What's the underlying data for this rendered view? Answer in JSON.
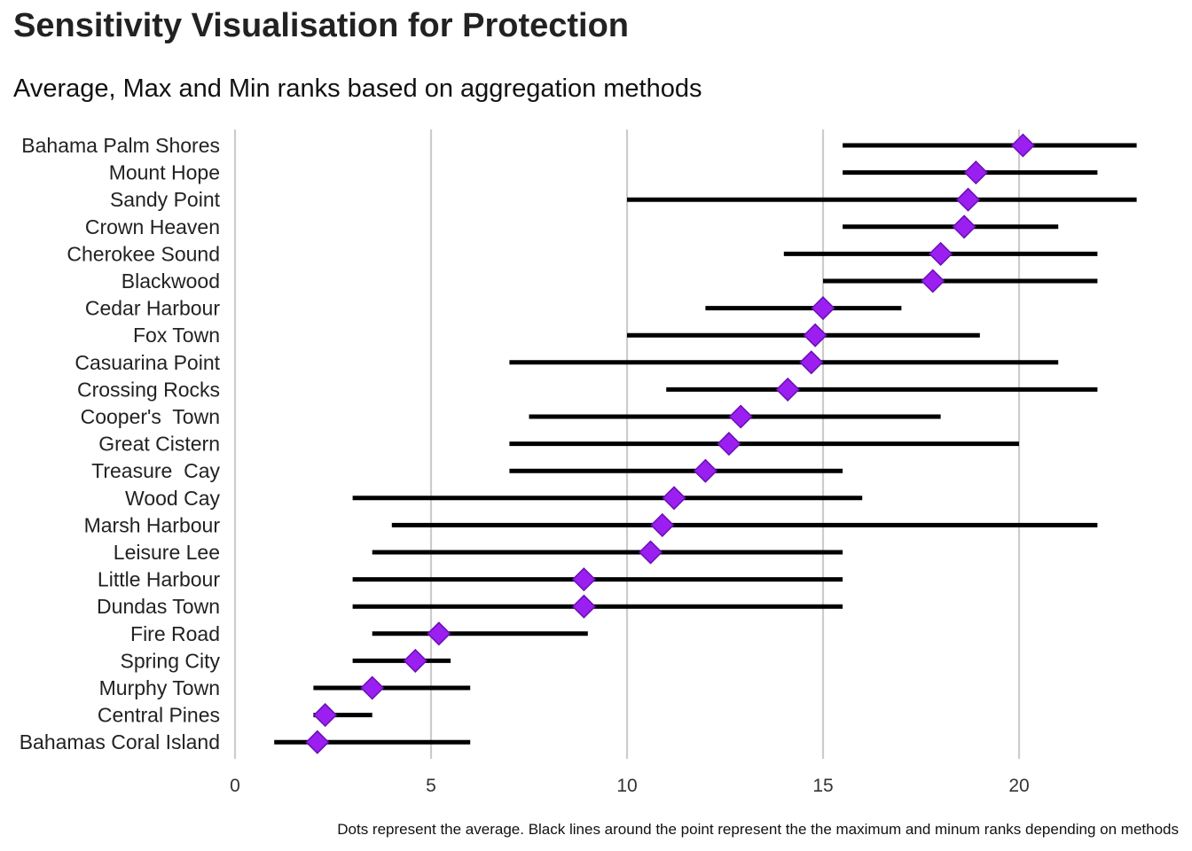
{
  "header": {
    "title": "Sensitivity Visualisation for Protection",
    "subtitle": "Average, Max and Min ranks based on aggregation methods"
  },
  "caption": "Dots represent the average. Black lines around the point represent the the maximum and minum ranks depending on methods",
  "colors": {
    "marker": "#9a1ff0",
    "marker_edge": "#6a0fb0",
    "range_line": "#000000",
    "grid": "#cccccc"
  },
  "chart_data": {
    "type": "scatter",
    "title": "Sensitivity Visualisation for Protection",
    "subtitle": "Average, Max and Min ranks based on aggregation methods",
    "xlabel": "",
    "ylabel": "",
    "xlim": [
      0,
      23.3
    ],
    "x_ticks": [
      0,
      5,
      10,
      15,
      20
    ],
    "grid": "vertical major gridlines",
    "categories": [
      "Bahama Palm Shores",
      "Mount Hope",
      "Sandy Point",
      "Crown Heaven",
      "Cherokee Sound",
      "Blackwood",
      "Cedar Harbour",
      "Fox Town",
      "Casuarina Point",
      "Crossing Rocks",
      "Cooper's  Town",
      "Great Cistern",
      "Treasure  Cay",
      "Wood Cay",
      "Marsh Harbour",
      "Leisure Lee",
      "Little Harbour",
      "Dundas Town",
      "Fire Road",
      "Spring City",
      "Murphy Town",
      "Central Pines",
      "Bahamas Coral Island"
    ],
    "series": [
      {
        "name": "average",
        "values": [
          20.1,
          18.9,
          18.7,
          18.6,
          18.0,
          17.8,
          15.0,
          14.8,
          14.7,
          14.1,
          12.9,
          12.6,
          12.0,
          11.2,
          10.9,
          10.6,
          8.9,
          8.9,
          5.2,
          4.6,
          3.5,
          2.3,
          2.1
        ]
      },
      {
        "name": "min",
        "values": [
          15.5,
          15.5,
          10.0,
          15.5,
          14.0,
          15.0,
          12.0,
          10.0,
          7.0,
          11.0,
          7.5,
          7.0,
          7.0,
          3.0,
          4.0,
          3.5,
          3.0,
          3.0,
          3.5,
          3.0,
          2.0,
          2.0,
          1.0
        ]
      },
      {
        "name": "max",
        "values": [
          23.0,
          22.0,
          23.0,
          21.0,
          22.0,
          22.0,
          17.0,
          19.0,
          21.0,
          22.0,
          18.0,
          20.0,
          15.5,
          16.0,
          22.0,
          15.5,
          15.5,
          15.5,
          9.0,
          5.5,
          6.0,
          3.5,
          6.0
        ]
      }
    ]
  }
}
